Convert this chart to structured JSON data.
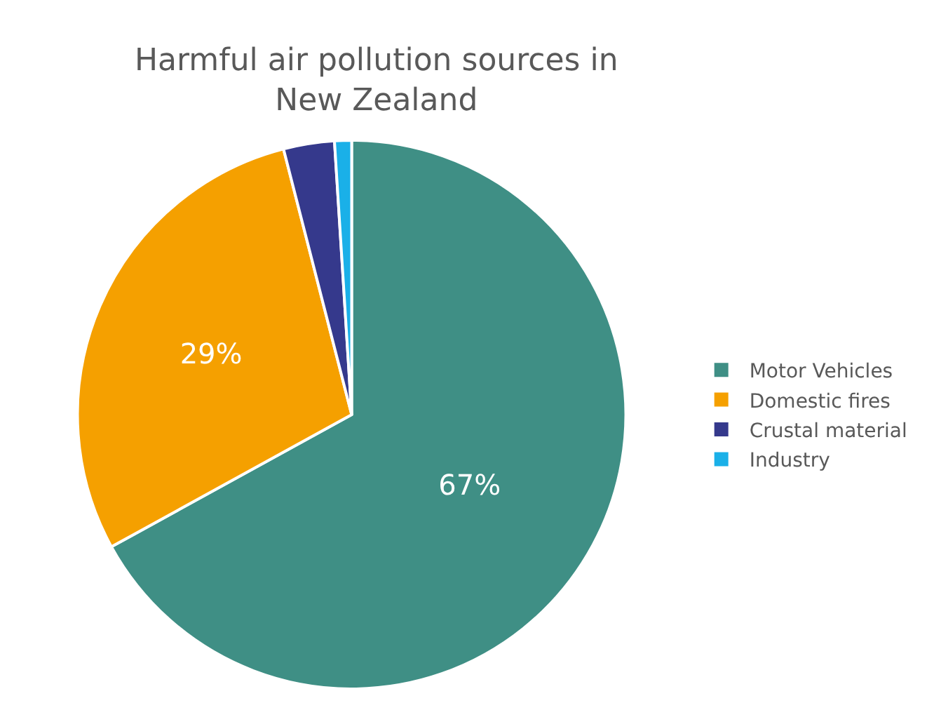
{
  "chart_data": {
    "type": "pie",
    "title": "Harmful air pollution sources in\nNew Zealand",
    "categories": [
      "Motor Vehicles",
      "Domestic fires",
      "Crustal material",
      "Industry"
    ],
    "values": [
      67,
      29,
      3,
      1
    ],
    "colors": [
      "#3f8f85",
      "#f5a000",
      "#35398c",
      "#1ab0e8"
    ],
    "value_labels": [
      "67%",
      "29%",
      null,
      null
    ],
    "legend": "right"
  }
}
